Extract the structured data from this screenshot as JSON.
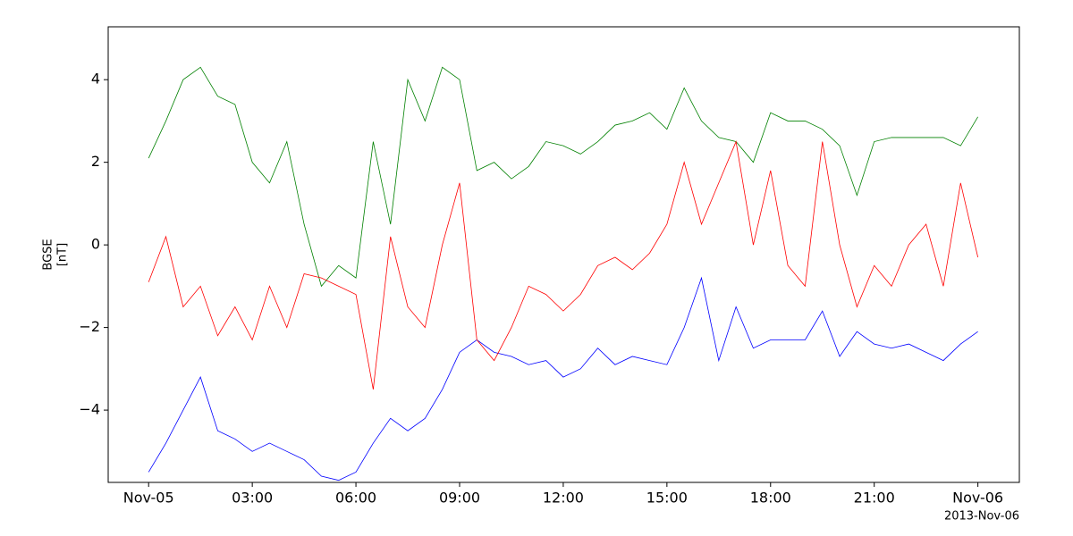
{
  "chart_data": {
    "type": "line",
    "ylabel": [
      "BGSE",
      "[nT]"
    ],
    "x_offset_label": "2013-Nov-06",
    "x": [
      0,
      0.5,
      1,
      1.5,
      2,
      2.5,
      3,
      3.5,
      4,
      4.5,
      5,
      5.5,
      6,
      6.5,
      7,
      7.5,
      8,
      8.5,
      9,
      9.5,
      10,
      10.5,
      11,
      11.5,
      12,
      12.5,
      13,
      13.5,
      14,
      14.5,
      15,
      15.5,
      16,
      16.5,
      17,
      17.5,
      18,
      18.5,
      19,
      19.5,
      20,
      20.5,
      21,
      21.5,
      22,
      22.5,
      23,
      23.5,
      24
    ],
    "series": [
      {
        "color": "#0000ff",
        "values": [
          -5.5,
          -4.8,
          -4.0,
          -3.2,
          -4.5,
          -4.7,
          -5.0,
          -4.8,
          -5.0,
          -5.2,
          -5.6,
          -5.7,
          -5.5,
          -4.8,
          -4.2,
          -4.5,
          -4.2,
          -3.5,
          -2.6,
          -2.3,
          -2.6,
          -2.7,
          -2.9,
          -2.8,
          -3.2,
          -3.0,
          -2.5,
          -2.9,
          -2.7,
          -2.8,
          -2.9,
          -2.0,
          -0.8,
          -2.8,
          -1.5,
          -2.5,
          -2.3,
          -2.3,
          -2.3,
          -1.6,
          -2.7,
          -2.1,
          -2.4,
          -2.5,
          -2.4,
          -2.6,
          -2.8,
          -2.4,
          -2.1
        ]
      },
      {
        "color": "#008000",
        "values": [
          2.1,
          3.0,
          4.0,
          4.3,
          3.6,
          3.4,
          2.0,
          1.5,
          2.5,
          0.5,
          -1.0,
          -0.5,
          -0.8,
          2.5,
          0.5,
          4.0,
          3.0,
          4.3,
          4.0,
          1.8,
          2.0,
          1.6,
          1.9,
          2.5,
          2.4,
          2.2,
          2.5,
          2.9,
          3.0,
          3.2,
          2.8,
          3.8,
          3.0,
          2.6,
          2.5,
          2.0,
          3.2,
          3.0,
          3.0,
          2.8,
          2.4,
          1.2,
          2.5,
          2.6,
          2.6,
          2.6,
          2.6,
          2.4,
          3.1
        ]
      },
      {
        "color": "#ff0000",
        "values": [
          -0.9,
          0.2,
          -1.5,
          -1.0,
          -2.2,
          -1.5,
          -2.3,
          -1.0,
          -2.0,
          -0.7,
          -0.8,
          -1.0,
          -1.2,
          -3.5,
          0.2,
          -1.5,
          -2.0,
          0.0,
          1.5,
          -2.3,
          -2.8,
          -2.0,
          -1.0,
          -1.2,
          -1.6,
          -1.2,
          -0.5,
          -0.3,
          -0.6,
          -0.2,
          0.5,
          2.0,
          0.5,
          1.5,
          2.5,
          0.0,
          1.8,
          -0.5,
          -1.0,
          2.5,
          0.0,
          -1.5,
          -0.5,
          -1.0,
          0.0,
          0.5,
          -1.0,
          1.5,
          -0.3
        ]
      }
    ],
    "xlim": [
      -1.17,
      25.2
    ],
    "xticks": [
      {
        "value": 0,
        "label": "Nov-05"
      },
      {
        "value": 3,
        "label": "03:00"
      },
      {
        "value": 6,
        "label": "06:00"
      },
      {
        "value": 9,
        "label": "09:00"
      },
      {
        "value": 12,
        "label": "12:00"
      },
      {
        "value": 15,
        "label": "15:00"
      },
      {
        "value": 18,
        "label": "18:00"
      },
      {
        "value": 21,
        "label": "21:00"
      },
      {
        "value": 24,
        "label": "Nov-06"
      }
    ],
    "ylim": [
      -5.75,
      5.28
    ],
    "yticks": [
      {
        "value": -4,
        "label": "−4"
      },
      {
        "value": -2,
        "label": "−2"
      },
      0,
      2,
      4
    ],
    "grid": false
  }
}
